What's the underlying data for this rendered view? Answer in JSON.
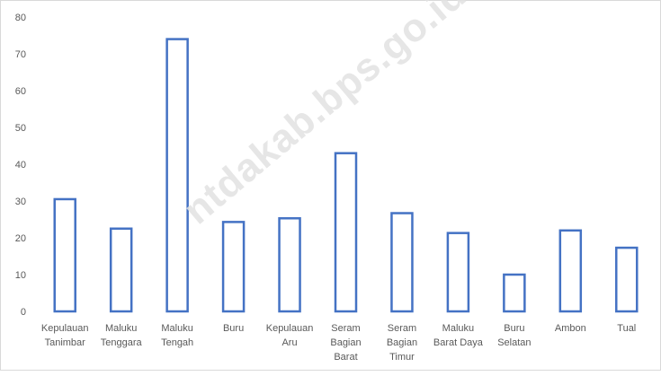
{
  "chart_data": {
    "type": "bar",
    "categories": [
      [
        "Kepulauan",
        "Tanimbar"
      ],
      [
        "Maluku",
        "Tenggara"
      ],
      [
        "Maluku",
        "Tengah"
      ],
      [
        "Buru"
      ],
      [
        "Kepulauan",
        "Aru"
      ],
      [
        "Seram",
        "Bagian",
        "Barat"
      ],
      [
        "Seram",
        "Bagian",
        "Timur"
      ],
      [
        "Maluku",
        "Barat Daya"
      ],
      [
        "Buru",
        "Selatan"
      ],
      [
        "Ambon"
      ],
      [
        "Tual"
      ]
    ],
    "values": [
      30.5,
      22.5,
      74,
      24.3,
      25.3,
      43,
      26.7,
      21.3,
      10,
      22,
      17.3
    ],
    "title": "",
    "xlabel": "",
    "ylabel": "",
    "ylim": [
      0,
      80
    ],
    "yticks": [
      0,
      10,
      20,
      30,
      40,
      50,
      60,
      70,
      80
    ],
    "grid": false,
    "bar_style": "outline",
    "bar_color": "#4472c4"
  },
  "watermark": "ntdakab.bps.go.id"
}
